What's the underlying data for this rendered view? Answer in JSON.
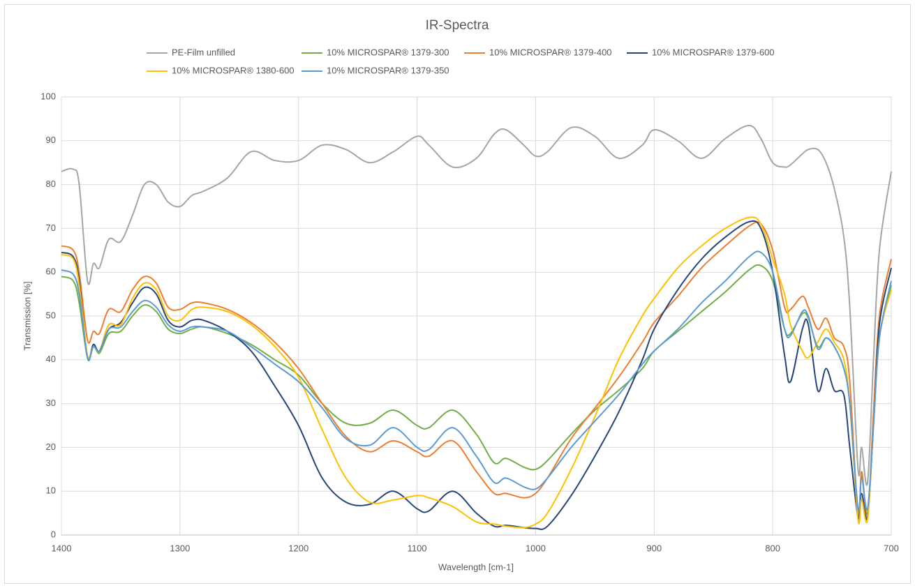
{
  "chart_data": {
    "type": "line",
    "title": "IR-Spectra",
    "x_label": "Wavelength [cm-1]",
    "y_label": "Transmission [%]",
    "x": [
      1400,
      1390,
      1385,
      1378,
      1373,
      1368,
      1360,
      1350,
      1340,
      1330,
      1320,
      1310,
      1300,
      1290,
      1280,
      1260,
      1240,
      1220,
      1200,
      1180,
      1160,
      1140,
      1120,
      1100,
      1090,
      1070,
      1050,
      1035,
      1025,
      1010,
      1000,
      990,
      970,
      950,
      930,
      910,
      900,
      880,
      860,
      840,
      820,
      810,
      800,
      790,
      785,
      775,
      770,
      762,
      755,
      748,
      740,
      735,
      728,
      725,
      720,
      715,
      710,
      700
    ],
    "series": [
      {
        "name": "PE-Film unfilled",
        "color": "#a5a5a5",
        "values": [
          83,
          83.5,
          80,
          58,
          62,
          61,
          67.5,
          67,
          73,
          80,
          80,
          76,
          75,
          77.5,
          78.5,
          81.5,
          87.5,
          85.5,
          85.5,
          89,
          88,
          85,
          87.5,
          91,
          89,
          84,
          86,
          91.5,
          92.5,
          89,
          86.5,
          87.5,
          93,
          91,
          86,
          89,
          92.5,
          90,
          86,
          90.5,
          93.5,
          90.5,
          85,
          84,
          84.5,
          87,
          88,
          88,
          85,
          79,
          68,
          52,
          15,
          20,
          12,
          40,
          65,
          83
        ]
      },
      {
        "name": "10% MICROSPAR® 1379-300",
        "color": "#70ad47",
        "values": [
          59,
          58,
          53,
          40.5,
          43.5,
          41.5,
          46,
          46.5,
          50,
          52.5,
          51,
          47,
          46,
          47,
          47.5,
          46,
          43.5,
          40,
          36.5,
          30,
          25.5,
          25.5,
          28.5,
          25,
          24.5,
          28.5,
          23,
          16.5,
          17.5,
          15.5,
          15,
          17,
          23,
          28.5,
          33,
          38,
          42,
          46.5,
          51,
          55.5,
          60.5,
          61.5,
          58,
          47,
          46,
          50.5,
          49.5,
          43,
          45,
          43,
          38,
          30,
          5,
          13.5,
          5,
          25,
          45,
          57
        ]
      },
      {
        "name": "10% MICROSPAR® 1379-400",
        "color": "#ed7d31",
        "values": [
          66,
          65,
          60,
          44.5,
          46.5,
          46,
          51.5,
          51,
          56,
          59,
          57.5,
          52,
          51.5,
          53,
          53,
          51.5,
          48.5,
          44,
          38,
          30,
          22.5,
          19,
          21.5,
          19,
          18,
          21.5,
          14.5,
          9.5,
          9.5,
          8.5,
          9.5,
          13,
          22,
          29,
          36,
          44,
          48.5,
          54.5,
          61,
          66,
          70.5,
          71,
          65,
          52,
          51.5,
          54.5,
          52,
          47,
          49.5,
          45,
          43,
          35,
          4,
          14.5,
          4,
          28,
          50,
          63
        ]
      },
      {
        "name": "10% MICROSPAR® 1379-600",
        "color": "#264478",
        "values": [
          64.5,
          63.5,
          58,
          40.5,
          43.5,
          42,
          47,
          48.5,
          53,
          56.5,
          55,
          49,
          47.5,
          49,
          49,
          46.5,
          42,
          34,
          25,
          13,
          7.5,
          7,
          10,
          6,
          5.5,
          10,
          5,
          2,
          2.2,
          1.7,
          1.5,
          2,
          9,
          18,
          28,
          40,
          47,
          56,
          63,
          68,
          71.5,
          70,
          60,
          41,
          35,
          47,
          48,
          33,
          38,
          33,
          32,
          20,
          4,
          9.5,
          4,
          25,
          48,
          61
        ]
      },
      {
        "name": "10% MICROSPAR® 1380-600",
        "color": "#ffc000",
        "values": [
          64,
          63,
          57,
          41,
          43,
          42,
          48,
          48,
          54,
          57.5,
          56,
          50,
          49,
          51.5,
          52,
          51,
          48,
          43,
          36,
          24,
          13,
          7.5,
          8,
          9,
          8.5,
          6.5,
          3,
          2.5,
          2,
          1.7,
          2.5,
          5,
          15,
          27,
          40,
          50,
          54,
          61,
          66,
          70,
          72.5,
          71,
          63,
          55,
          48,
          42,
          40.5,
          44,
          47,
          44,
          40,
          30,
          3.5,
          8,
          3.5,
          25,
          45,
          56
        ]
      },
      {
        "name": "10% MICROSPAR® 1379-350",
        "color": "#5b9bd5",
        "values": [
          60.5,
          59.5,
          55,
          40.5,
          43,
          42,
          47,
          47.5,
          51,
          53.5,
          52,
          48,
          46.5,
          47.5,
          47.5,
          46.5,
          43,
          39,
          35,
          29,
          22,
          20.5,
          24.5,
          20,
          19.5,
          24.5,
          18,
          12,
          13,
          11,
          10.5,
          13,
          20,
          26,
          32,
          39,
          42,
          47,
          53,
          58,
          63.5,
          64.5,
          60,
          47,
          45.5,
          51,
          50,
          42.5,
          45,
          43,
          38,
          30,
          6,
          13,
          6,
          25,
          45,
          58
        ]
      }
    ],
    "xlim": [
      1400,
      700
    ],
    "xticks": [
      1400,
      1300,
      1200,
      1100,
      1000,
      900,
      800,
      700
    ],
    "ylim": [
      0,
      100
    ],
    "yticks": [
      0,
      10,
      20,
      30,
      40,
      50,
      60,
      70,
      80,
      90,
      100
    ],
    "grid": true,
    "legend": "top"
  }
}
